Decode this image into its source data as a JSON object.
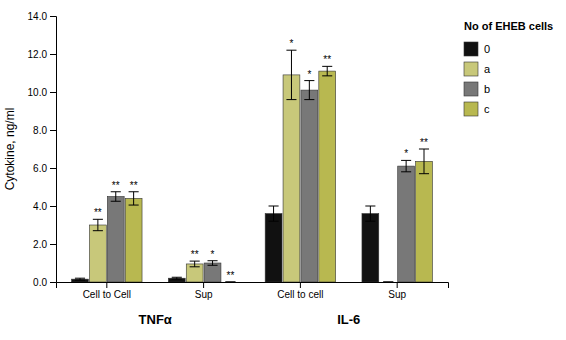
{
  "chart_data": {
    "type": "bar",
    "categories": [
      "Cell to Cell",
      "Sup",
      "Cell to cell",
      "Sup"
    ],
    "category_groups": [
      "TNFα",
      "IL-6"
    ],
    "series": [
      {
        "name": "0",
        "color": "#111111",
        "values": [
          0.15,
          0.2,
          3.6,
          3.6
        ],
        "errors": [
          0.05,
          0.05,
          0.4,
          0.4
        ],
        "significance": [
          null,
          null,
          null,
          null
        ]
      },
      {
        "name": "a",
        "color": "#c8c87a",
        "values": [
          3.0,
          0.95,
          10.9,
          0.0
        ],
        "errors": [
          0.3,
          0.15,
          1.3,
          0.0
        ],
        "significance": [
          "**",
          "**",
          "*",
          null
        ]
      },
      {
        "name": "b",
        "color": "#787878",
        "values": [
          4.5,
          1.0,
          10.1,
          6.1
        ],
        "errors": [
          0.25,
          0.12,
          0.5,
          0.3
        ],
        "significance": [
          "**",
          "*",
          "*",
          "*"
        ]
      },
      {
        "name": "c",
        "color": "#b8b850",
        "values": [
          4.4,
          0.0,
          11.1,
          6.35
        ],
        "errors": [
          0.35,
          0.0,
          0.25,
          0.65
        ],
        "significance": [
          "**",
          "**",
          "**",
          "**"
        ]
      }
    ],
    "ylim": [
      0,
      14.0
    ],
    "yticks": [
      {
        "value": 0.0,
        "label": "0.0"
      },
      {
        "value": 2.0,
        "label": "2.0"
      },
      {
        "value": 4.0,
        "label": "4.0"
      },
      {
        "value": 6.0,
        "label": "6.0"
      },
      {
        "value": 8.0,
        "label": "8.0"
      },
      {
        "value": 10.0,
        "label": "10.0"
      },
      {
        "value": 12.0,
        "label": "12.0"
      },
      {
        "value": 14.0,
        "label": "14.0"
      }
    ],
    "ylabel": "Cytokine, ng/ml",
    "legend_title": "No of EHEB cells",
    "legend": "right",
    "grid": false
  }
}
